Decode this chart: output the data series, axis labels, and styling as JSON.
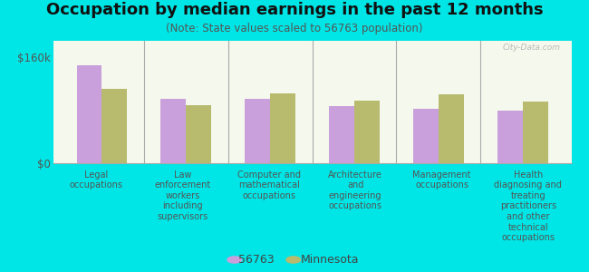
{
  "title": "Occupation by median earnings in the past 12 months",
  "subtitle": "(Note: State values scaled to 56763 population)",
  "background_color": "#00e5e5",
  "plot_bg_color_top": "#e8efd8",
  "plot_bg_color_bottom": "#f5f8ec",
  "categories": [
    "Legal\noccupations",
    "Law\nenforcement\nworkers\nincluding\nsupervisors",
    "Computer and\nmathematical\noccupations",
    "Architecture\nand\nengineering\noccupations",
    "Management\noccupations",
    "Health\ndiagnosing and\ntreating\npractitioners\nand other\ntechnical\noccupations"
  ],
  "values_56763": [
    148000,
    97000,
    97000,
    87000,
    82000,
    80000
  ],
  "values_minnesota": [
    112000,
    88000,
    105000,
    95000,
    104000,
    93000
  ],
  "color_56763": "#c9a0dc",
  "color_minnesota": "#b8bb6e",
  "ylabel_ticks": [
    "$0",
    "$160k"
  ],
  "ytick_vals": [
    0,
    160000
  ],
  "ylim_max": 185000,
  "legend_label_56763": "56763",
  "legend_label_minnesota": "Minnesota",
  "bar_width": 0.3,
  "title_fontsize": 13,
  "subtitle_fontsize": 8.5,
  "tick_label_fontsize": 7,
  "legend_fontsize": 9,
  "watermark": "City-Data.com"
}
